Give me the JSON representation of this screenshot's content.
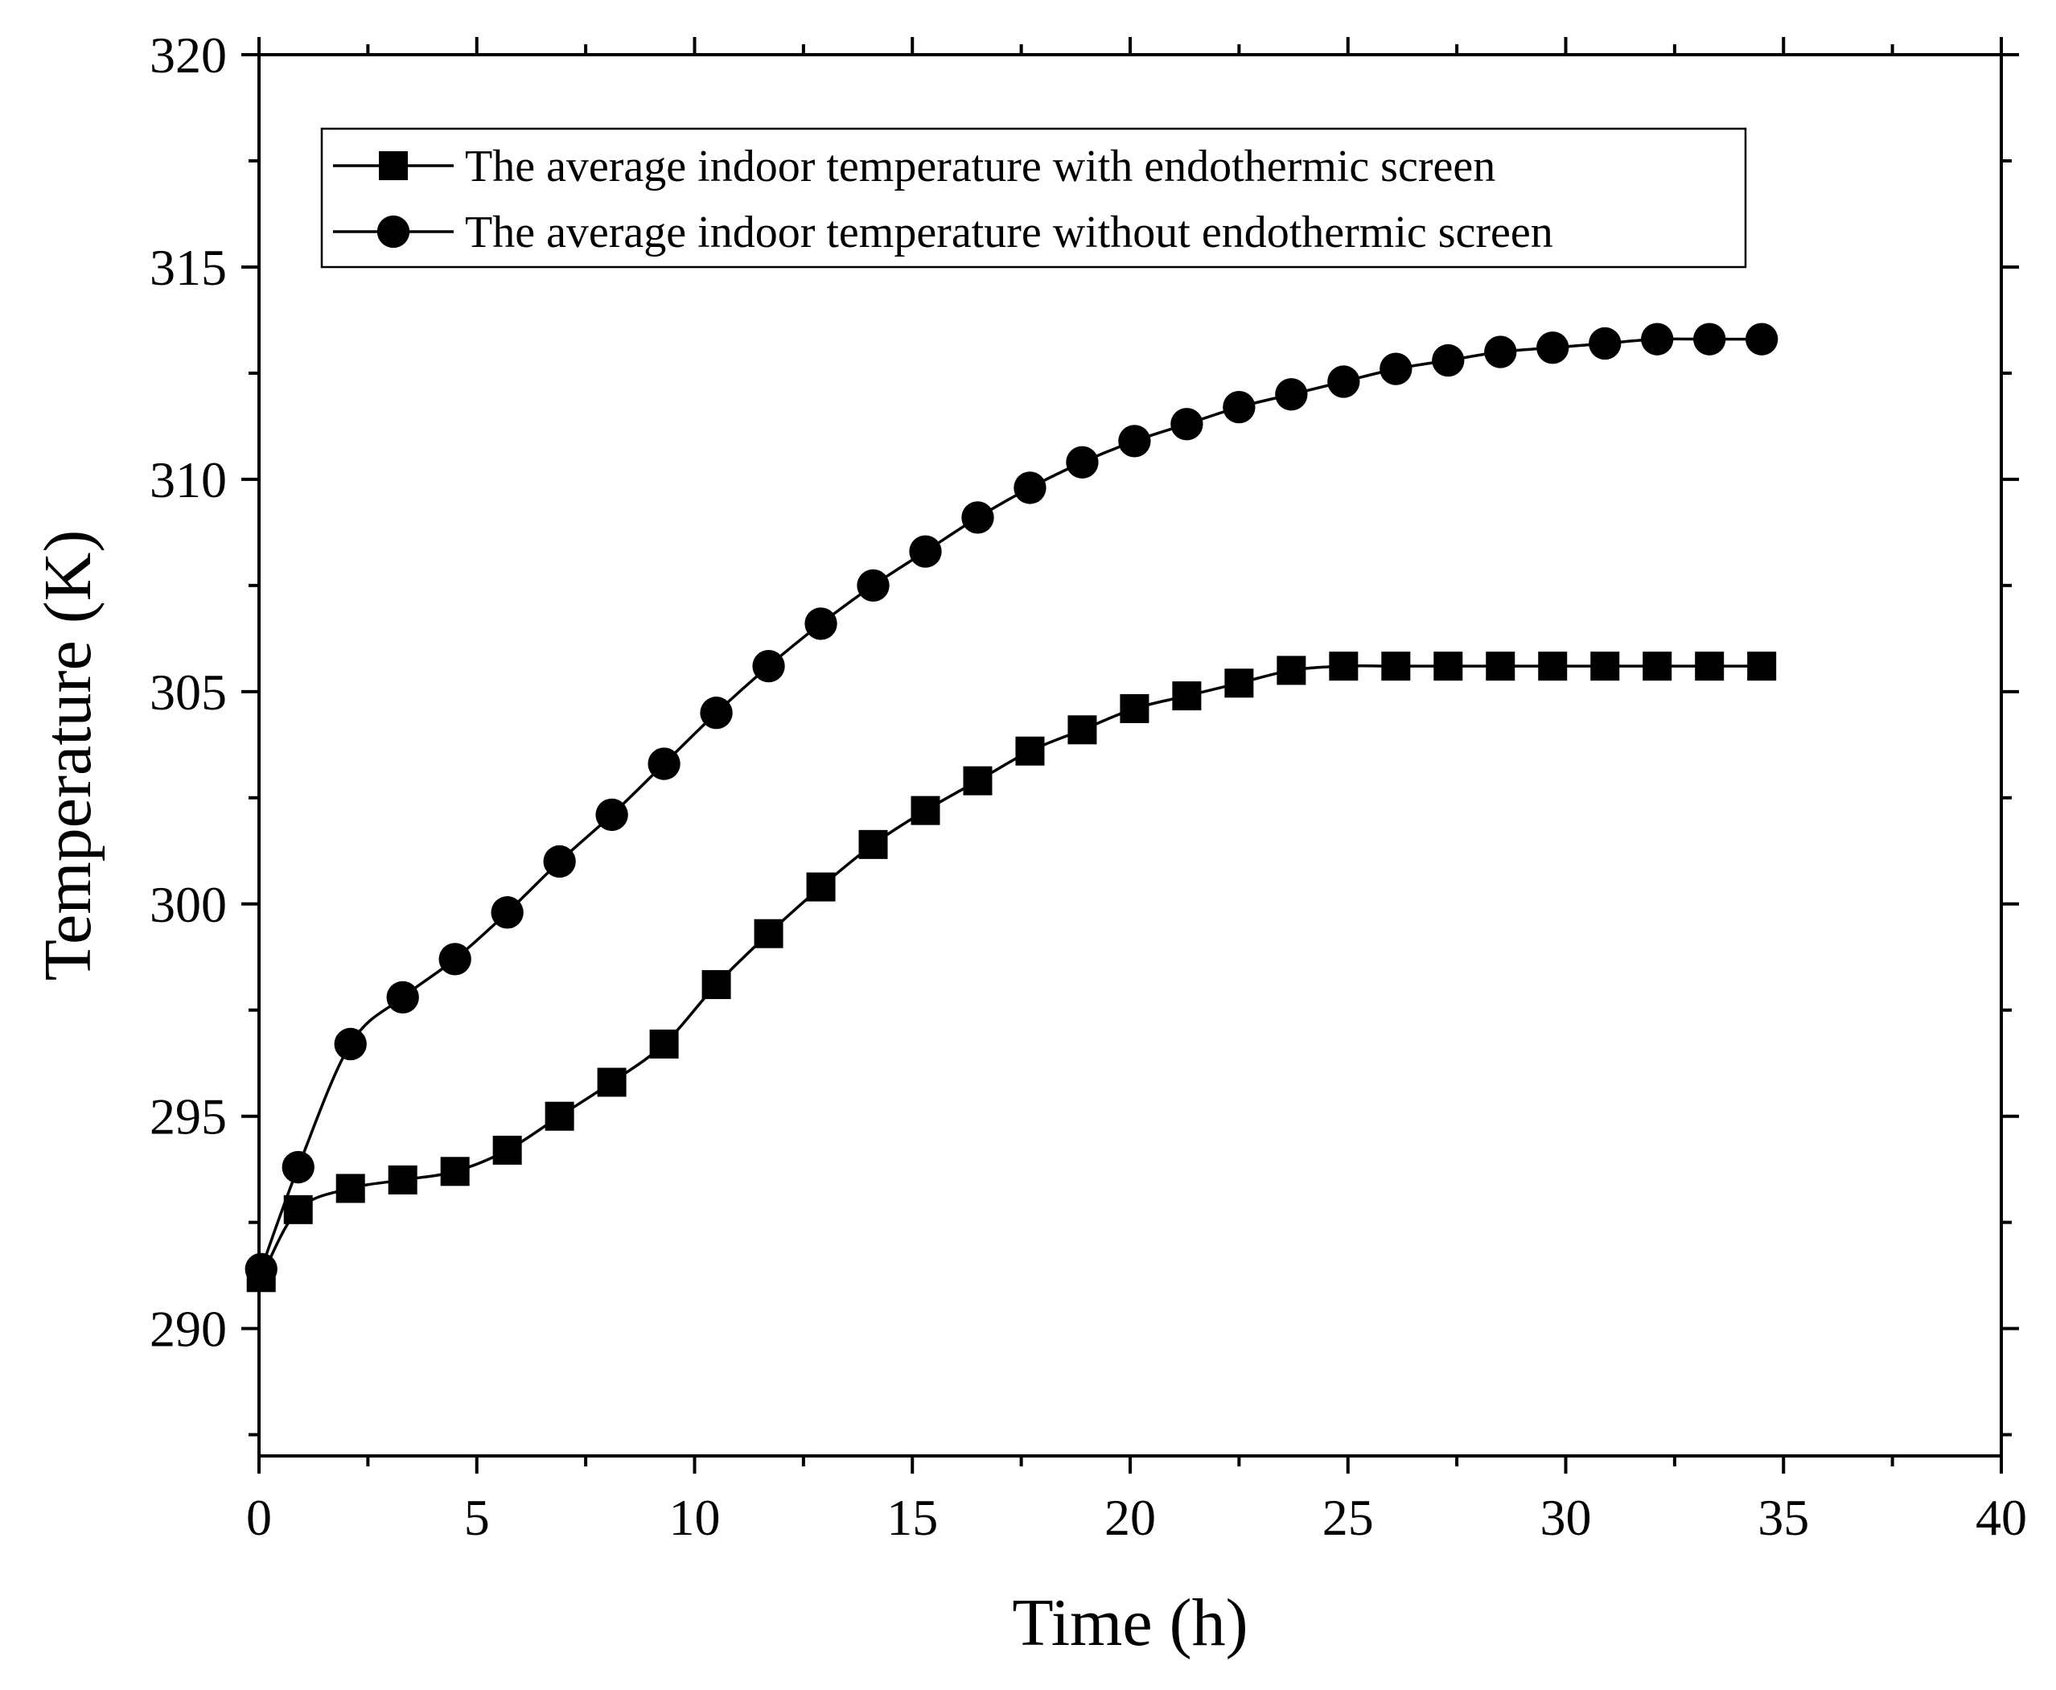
{
  "chart_data": {
    "type": "line",
    "title": "",
    "xlabel": "Time (h)",
    "ylabel": "Temperature (K)",
    "xlim": [
      0,
      40
    ],
    "ylim": [
      287,
      320
    ],
    "xticks": [
      0,
      5,
      10,
      15,
      20,
      25,
      30,
      35,
      40
    ],
    "xtick_labels": [
      "0",
      "5",
      "10",
      "15",
      "20",
      "25",
      "30",
      "35",
      "40"
    ],
    "yticks": [
      290,
      295,
      300,
      305,
      310,
      315,
      320
    ],
    "ytick_labels": [
      "290",
      "295",
      "300",
      "305",
      "310",
      "315",
      "320"
    ],
    "grid": false,
    "legend_position": "top-left",
    "series": [
      {
        "name": "The average indoor temperature with endothermic screen",
        "marker": "square",
        "color": "#000000",
        "x": [
          0.05,
          0.9,
          2.1,
          3.3,
          4.5,
          5.7,
          6.9,
          8.1,
          9.3,
          10.5,
          11.7,
          12.9,
          14.1,
          15.3,
          16.5,
          17.7,
          18.9,
          20.1,
          21.3,
          22.5,
          23.7,
          24.9,
          26.1,
          27.3,
          28.5,
          29.7,
          30.9,
          32.1,
          33.3,
          34.5
        ],
        "y": [
          291.2,
          292.8,
          293.3,
          293.5,
          293.7,
          294.2,
          295.0,
          295.8,
          296.7,
          298.1,
          299.3,
          300.4,
          301.4,
          302.2,
          302.9,
          303.6,
          304.1,
          304.6,
          304.9,
          305.2,
          305.5,
          305.6,
          305.6,
          305.6,
          305.6,
          305.6,
          305.6,
          305.6,
          305.6,
          305.6
        ]
      },
      {
        "name": "The average indoor temperature without endothermic screen",
        "marker": "circle",
        "color": "#000000",
        "x": [
          0.05,
          0.9,
          2.1,
          3.3,
          4.5,
          5.7,
          6.9,
          8.1,
          9.3,
          10.5,
          11.7,
          12.9,
          14.1,
          15.3,
          16.5,
          17.7,
          18.9,
          20.1,
          21.3,
          22.5,
          23.7,
          24.9,
          26.1,
          27.3,
          28.5,
          29.7,
          30.9,
          32.1,
          33.3,
          34.5
        ],
        "y": [
          291.4,
          293.8,
          296.7,
          297.8,
          298.7,
          299.8,
          301.0,
          302.1,
          303.3,
          304.5,
          305.6,
          306.6,
          307.5,
          308.3,
          309.1,
          309.8,
          310.4,
          310.9,
          311.3,
          311.7,
          312.0,
          312.3,
          312.6,
          312.8,
          313.0,
          313.1,
          313.2,
          313.3,
          313.3,
          313.3
        ]
      }
    ]
  }
}
